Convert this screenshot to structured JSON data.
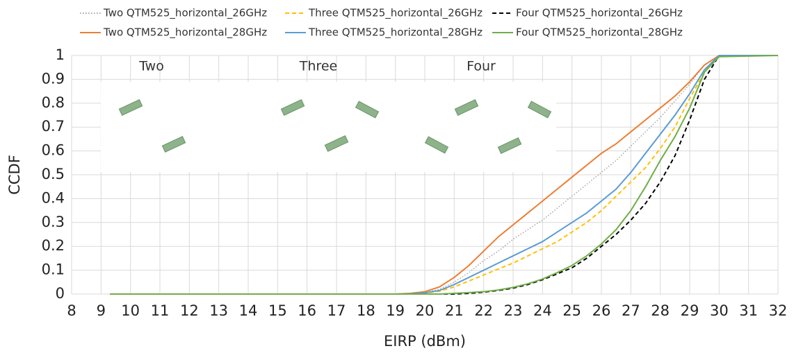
{
  "chart_data": {
    "type": "line",
    "xlabel": "EIRP (dBm)",
    "ylabel": "CCDF",
    "annotations": [
      "Two",
      "Three",
      "Four"
    ],
    "x": [
      9.3,
      19,
      19.5,
      20,
      20.5,
      21,
      21.5,
      22,
      22.5,
      23,
      23.5,
      24,
      24.5,
      25,
      25.5,
      26,
      26.5,
      27,
      27.5,
      28,
      28.5,
      29,
      29.5,
      30,
      32
    ],
    "series": [
      {
        "name": "Two QTM525_horizontal_26GHz",
        "color": "#a5a5a5",
        "dash": "dotted",
        "values": [
          0,
          0,
          0.002,
          0.007,
          0.02,
          0.05,
          0.09,
          0.14,
          0.18,
          0.23,
          0.27,
          0.31,
          0.36,
          0.41,
          0.46,
          0.51,
          0.56,
          0.62,
          0.68,
          0.74,
          0.81,
          0.88,
          0.96,
          1,
          1
        ]
      },
      {
        "name": "Three QTM525_horizontal_26GHz",
        "color": "#ffc000",
        "dash": "dashed",
        "values": [
          0,
          0,
          0.001,
          0.004,
          0.012,
          0.03,
          0.055,
          0.08,
          0.105,
          0.13,
          0.16,
          0.19,
          0.22,
          0.26,
          0.3,
          0.35,
          0.41,
          0.47,
          0.53,
          0.61,
          0.7,
          0.82,
          0.93,
          1,
          1
        ]
      },
      {
        "name": "Four QTM525_horizontal_26GHz",
        "color": "#000000",
        "dash": "dashed",
        "values": [
          0,
          0,
          0,
          0,
          0,
          0,
          0.003,
          0.008,
          0.015,
          0.025,
          0.04,
          0.06,
          0.085,
          0.11,
          0.15,
          0.2,
          0.25,
          0.31,
          0.38,
          0.47,
          0.58,
          0.73,
          0.9,
          1,
          1
        ]
      },
      {
        "name": "Two QTM525_horizontal_28GHz",
        "color": "#ed7d31",
        "dash": "solid",
        "values": [
          0,
          0,
          0.003,
          0.01,
          0.03,
          0.07,
          0.12,
          0.18,
          0.24,
          0.29,
          0.34,
          0.39,
          0.44,
          0.49,
          0.54,
          0.59,
          0.63,
          0.68,
          0.73,
          0.78,
          0.83,
          0.89,
          0.96,
          1,
          1
        ]
      },
      {
        "name": "Three QTM525_horizontal_28GHz",
        "color": "#5b9bd5",
        "dash": "solid",
        "values": [
          0,
          0,
          0.001,
          0.005,
          0.015,
          0.04,
          0.07,
          0.1,
          0.13,
          0.16,
          0.19,
          0.22,
          0.26,
          0.3,
          0.34,
          0.39,
          0.44,
          0.51,
          0.59,
          0.67,
          0.75,
          0.84,
          0.94,
          1,
          1
        ]
      },
      {
        "name": "Four QTM525_horizontal_28GHz",
        "color": "#70ad47",
        "dash": "solid",
        "values": [
          0,
          0,
          0,
          0,
          0,
          0.003,
          0.006,
          0.01,
          0.017,
          0.028,
          0.043,
          0.063,
          0.09,
          0.12,
          0.16,
          0.21,
          0.27,
          0.35,
          0.45,
          0.56,
          0.66,
          0.78,
          0.93,
          0.995,
          1
        ]
      }
    ],
    "xlim": [
      8,
      32
    ],
    "xticks": [
      8,
      9,
      10,
      11,
      12,
      13,
      14,
      15,
      16,
      17,
      18,
      19,
      20,
      21,
      22,
      23,
      24,
      25,
      26,
      27,
      28,
      29,
      30,
      31,
      32
    ],
    "ylim": [
      0,
      1
    ],
    "yticks": [
      0,
      0.1,
      0.2,
      0.3,
      0.4,
      0.5,
      0.6,
      0.7,
      0.8,
      0.9,
      1
    ],
    "grid": true
  }
}
